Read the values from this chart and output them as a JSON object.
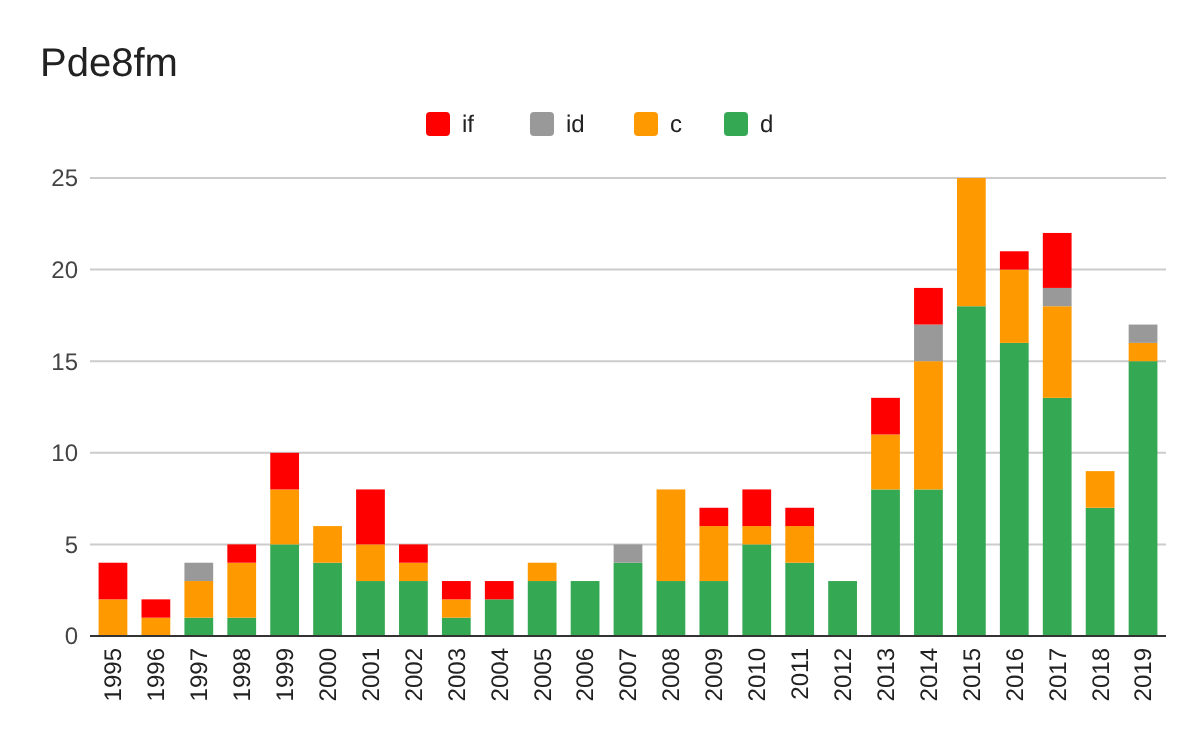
{
  "chart_data": {
    "type": "bar",
    "title": "Pde8fm",
    "stacked": true,
    "legend": "top",
    "grid": "y",
    "categories": [
      "1995",
      "1996",
      "1997",
      "1998",
      "1999",
      "2000",
      "2001",
      "2002",
      "2003",
      "2004",
      "2005",
      "2006",
      "2007",
      "2008",
      "2009",
      "2010",
      "2011",
      "2012",
      "2013",
      "2014",
      "2015",
      "2016",
      "2017",
      "2018",
      "2019"
    ],
    "series": [
      {
        "name": "d",
        "color": "#34a853",
        "values": [
          0,
          0,
          1,
          1,
          5,
          4,
          3,
          3,
          1,
          2,
          3,
          3,
          4,
          3,
          3,
          5,
          4,
          3,
          8,
          8,
          18,
          16,
          13,
          7,
          15
        ]
      },
      {
        "name": "c",
        "color": "#ff9900",
        "values": [
          2,
          1,
          2,
          3,
          3,
          2,
          2,
          1,
          1,
          0,
          1,
          0,
          0,
          5,
          3,
          1,
          2,
          0,
          3,
          7,
          7,
          4,
          5,
          2,
          1
        ]
      },
      {
        "name": "id",
        "color": "#999999",
        "values": [
          0,
          0,
          1,
          0,
          0,
          0,
          0,
          0,
          0,
          0,
          0,
          0,
          1,
          0,
          0,
          0,
          0,
          0,
          0,
          2,
          0,
          0,
          1,
          0,
          1
        ]
      },
      {
        "name": "if",
        "color": "#ff0000",
        "values": [
          2,
          1,
          0,
          1,
          2,
          0,
          3,
          1,
          1,
          1,
          0,
          0,
          0,
          0,
          1,
          2,
          1,
          0,
          2,
          2,
          0,
          1,
          3,
          0,
          0
        ]
      }
    ],
    "ylim": [
      0,
      25
    ],
    "yticks": [
      0,
      5,
      10,
      15,
      20,
      25
    ]
  }
}
